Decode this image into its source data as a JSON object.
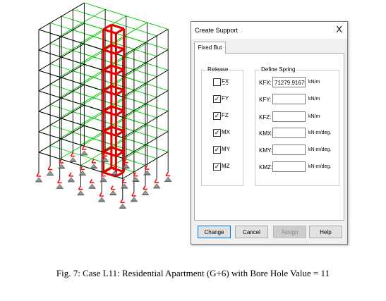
{
  "dialog": {
    "title": "Create Support",
    "close_glyph": "X",
    "tab_label": "Fixed But",
    "release_group_label": "Release",
    "spring_group_label": "Define Spring",
    "releases": [
      {
        "label": "FX",
        "checked": false
      },
      {
        "label": "FY",
        "checked": true
      },
      {
        "label": "FZ",
        "checked": true
      },
      {
        "label": "MX",
        "checked": true
      },
      {
        "label": "MY",
        "checked": true
      },
      {
        "label": "MZ",
        "checked": true
      }
    ],
    "springs": [
      {
        "label": "KFX:",
        "value": "71279.916753",
        "unit": "kN/m"
      },
      {
        "label": "KFY:",
        "value": "",
        "unit": "kN/m"
      },
      {
        "label": "KFZ:",
        "value": "",
        "unit": "kN/m"
      },
      {
        "label": "KMX:",
        "value": "",
        "unit": "kN-m/deg."
      },
      {
        "label": "KMY:",
        "value": "",
        "unit": "kN-m/deg."
      },
      {
        "label": "KMZ:",
        "value": "",
        "unit": "kN-m/deg."
      }
    ],
    "buttons": {
      "change": "Change",
      "cancel": "Cancel",
      "assign": "Assign",
      "help": "Help"
    }
  },
  "caption": "Fig. 7: Case L11: Residential Apartment (G+6) with Bore Hole Value = 11",
  "colors": {
    "frame_black": "#000000",
    "slab_green": "#00c800",
    "core_red": "#e00000",
    "support_red": "#ff0000"
  }
}
